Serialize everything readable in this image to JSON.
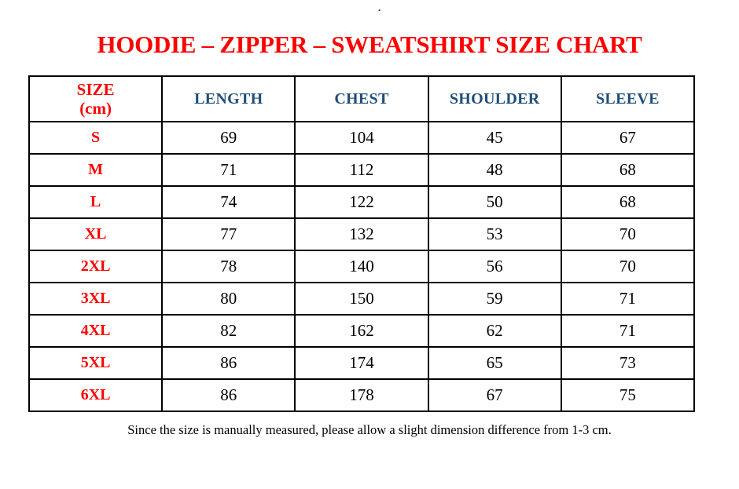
{
  "theme": {
    "red": "#ff0000",
    "blue": "#1f4e79",
    "text": "#000000",
    "border": "#000000",
    "bg": "#ffffff"
  },
  "page": {
    "stray_dot": "."
  },
  "title": {
    "text": "HOODIE – ZIPPER – SWEATSHIRT SIZE CHART"
  },
  "table": {
    "size_header": {
      "line1": "SIZE",
      "line2": "(cm)"
    },
    "columns": [
      "LENGTH",
      "CHEST",
      "SHOULDER",
      "SLEEVE"
    ],
    "rows": [
      {
        "size": "S",
        "length": "69",
        "chest": "104",
        "shoulder": "45",
        "sleeve": "67"
      },
      {
        "size": "M",
        "length": "71",
        "chest": "112",
        "shoulder": "48",
        "sleeve": "68"
      },
      {
        "size": "L",
        "length": "74",
        "chest": "122",
        "shoulder": "50",
        "sleeve": "68"
      },
      {
        "size": "XL",
        "length": "77",
        "chest": "132",
        "shoulder": "53",
        "sleeve": "70"
      },
      {
        "size": "2XL",
        "length": "78",
        "chest": "140",
        "shoulder": "56",
        "sleeve": "70"
      },
      {
        "size": "3XL",
        "length": "80",
        "chest": "150",
        "shoulder": "59",
        "sleeve": "71"
      },
      {
        "size": "4XL",
        "length": "82",
        "chest": "162",
        "shoulder": "62",
        "sleeve": "71"
      },
      {
        "size": "5XL",
        "length": "86",
        "chest": "174",
        "shoulder": "65",
        "sleeve": "73"
      },
      {
        "size": "6XL",
        "length": "86",
        "chest": "178",
        "shoulder": "67",
        "sleeve": "75"
      }
    ]
  },
  "footer": {
    "note": "Since the size is manually measured, please allow a slight dimension difference from 1-3 cm."
  },
  "chart_data": {
    "type": "table",
    "title": "HOODIE – ZIPPER – SWEATSHIRT SIZE CHART",
    "columns": [
      "SIZE (cm)",
      "LENGTH",
      "CHEST",
      "SHOULDER",
      "SLEEVE"
    ],
    "rows": [
      [
        "S",
        69,
        104,
        45,
        67
      ],
      [
        "M",
        71,
        112,
        48,
        68
      ],
      [
        "L",
        74,
        122,
        50,
        68
      ],
      [
        "XL",
        77,
        132,
        53,
        70
      ],
      [
        "2XL",
        78,
        140,
        56,
        70
      ],
      [
        "3XL",
        80,
        150,
        59,
        71
      ],
      [
        "4XL",
        82,
        162,
        62,
        71
      ],
      [
        "5XL",
        86,
        174,
        65,
        73
      ],
      [
        "6XL",
        86,
        178,
        67,
        75
      ]
    ]
  }
}
